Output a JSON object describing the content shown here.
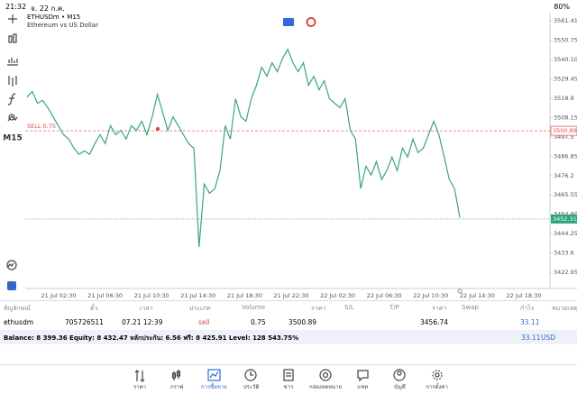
{
  "status_bar": {
    "time": "21:32",
    "date": "จ. 22 ก.ค.",
    "battery": "80%"
  },
  "chart_data": {
    "type": "line",
    "title": "ETHUSDm • M15",
    "subtitle": "Ethereum vs US Dollar",
    "timeframe": "M15",
    "color": "#3aa57e",
    "values": [
      3519.5,
      3522.5,
      3516.1,
      3517.6,
      3513.6,
      3508.6,
      3503.7,
      3498.7,
      3496.3,
      3491.3,
      3487.9,
      3489.8,
      3487.9,
      3493.8,
      3498.7,
      3493.8,
      3503.7,
      3498.7,
      3501.2,
      3496.3,
      3503.7,
      3501.2,
      3506.2,
      3498.7,
      3508.6,
      3521.0,
      3511.1,
      3501.2,
      3508.6,
      3503.7,
      3498.7,
      3493.8,
      3491.3,
      3436.8,
      3471.5,
      3466.5,
      3469.0,
      3478.9,
      3503.7,
      3496.3,
      3518.6,
      3508.6,
      3506.2,
      3518.6,
      3526.0,
      3535.9,
      3531.0,
      3538.4,
      3533.4,
      3540.8,
      3545.8,
      3538.4,
      3533.4,
      3538.4,
      3526.0,
      3531.0,
      3523.5,
      3528.5,
      3518.6,
      3516.1,
      3513.6,
      3518.6,
      3501.2,
      3496.3,
      3469.0,
      3481.4,
      3476.5,
      3483.9,
      3474.0,
      3478.9,
      3486.4,
      3478.9,
      3491.3,
      3486.4,
      3496.3,
      3488.9,
      3491.3,
      3498.7,
      3506.2,
      3498.7,
      3486.4,
      3474.0,
      3469.0,
      3453.2
    ],
    "ylim": [
      3414,
      3566
    ],
    "yticks": [
      3561.41,
      3550.75,
      {
        "value": 3540.1,
        "label": "3540.10"
      },
      3529.45,
      3518.8,
      3508.15,
      3497.5,
      3486.85,
      3476.2,
      3465.55,
      {
        "value": 3454.9,
        "label": "3454.90"
      },
      3444.25,
      3433.6,
      3422.95
    ],
    "xtick_labels": [
      "21 Jul 02:30",
      "21 Jul 06:30",
      "21 Jul 10:30",
      "21 Jul 14:30",
      "21 Jul 18:30",
      "21 Jul 22:30",
      "22 Jul 02:30",
      "22 Jul 06:30",
      "22 Jul 10:30",
      "22 Jul 14:30",
      "22 Jul 18:30"
    ],
    "order_line": {
      "label": "SELL 0.75",
      "value": 3500.89,
      "color": "#e04a4a"
    },
    "bid_line": {
      "value": 3452.31,
      "color": "#2aa57e"
    }
  },
  "positions": {
    "headers": [
      "สัญลักษณ์",
      "ตั๋ว",
      "เวลา",
      "ประเภท",
      "Volume",
      "ราคา",
      "S/L",
      "T/P",
      "ราคา",
      "Swap",
      "กำไร",
      "หมายเหตุ"
    ],
    "rows": [
      [
        "ethusdm",
        "705726511",
        "07.21 12:39",
        "sell",
        "0.75",
        "3500.89",
        "",
        "",
        "3456.74",
        "",
        "33.11",
        ""
      ]
    ]
  },
  "balance": {
    "text": "Balance: 8 399.36 Equity: 8 432.47 หลักประกัน: 6.56 ฟรี: 8 425.91 Level: 128 543.75%",
    "profit": "33.11",
    "currency": "USD"
  },
  "nav": [
    "ราคา",
    "กราฟ",
    "การซื้อขาย",
    "ประวัติ",
    "ข่าว",
    "กล่องจดหมาย",
    "แชท",
    "บัญชี",
    "การตั้งค่า"
  ]
}
